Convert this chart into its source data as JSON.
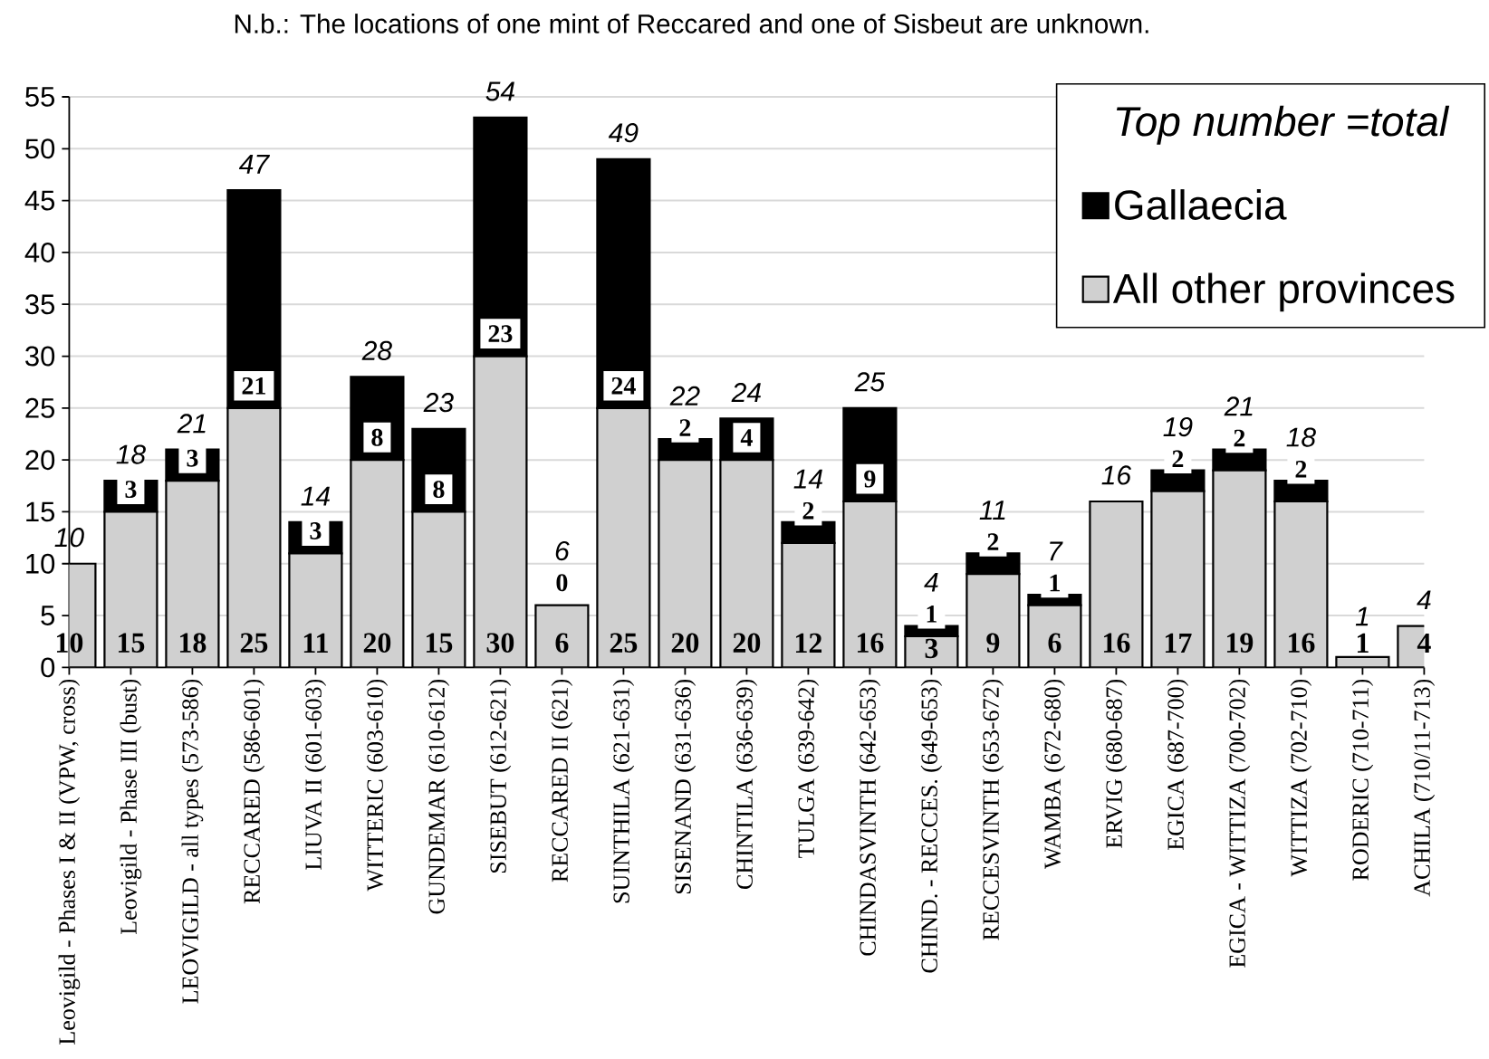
{
  "chart_data": {
    "type": "bar",
    "stacked": true,
    "annotations": [
      "N.b.: The locations of one mint of Reccared and one of Sisbeut are unknown."
    ],
    "categories": [
      "Leovigild - Phases I & II (VPW, cross)",
      "Leovigild - Phase III (bust)",
      "LEOVIGILD - all types (573-586)",
      "RECCARED (586-601)",
      "LIUVA II (601-603)",
      "WITTERIC (603-610)",
      "GUNDEMAR (610-612)",
      "SISEBUT (612-621)",
      "RECCARED II (621)",
      "SUINTHILA (621-631)",
      "SISENAND (631-636)",
      "CHINTILA (636-639)",
      "TULGA (639-642)",
      "CHINDASVINTH (642-653)",
      "CHIND. - RECCES. (649-653)",
      "RECCESVINTH (653-672)",
      "WAMBA (672-680)",
      "ERVIG (680-687)",
      "EGICA (687-700)",
      "EGICA - WITTIZA (700-702)",
      "WITTIZA (702-710)",
      "RODERIC (710-711)",
      "ACHILA (710/11-713)"
    ],
    "series": [
      {
        "name": "All other provinces",
        "color": "#d0d0d0",
        "values": [
          10,
          15,
          18,
          25,
          11,
          20,
          15,
          30,
          6,
          25,
          20,
          20,
          12,
          16,
          3,
          9,
          6,
          16,
          17,
          19,
          16,
          1,
          4
        ],
        "value_labels": [
          "10",
          "15",
          "18",
          "25",
          "11",
          "20",
          "15",
          "30",
          "6",
          "25",
          "20",
          "20",
          "12",
          "16",
          "3",
          "9",
          "6",
          "16",
          "17",
          "19",
          "16",
          "1",
          "4"
        ]
      },
      {
        "name": "Gallaecia",
        "color": "#000000",
        "values": [
          0,
          3,
          3,
          21,
          3,
          8,
          8,
          23,
          0,
          24,
          2,
          4,
          2,
          9,
          1,
          2,
          1,
          0,
          2,
          2,
          2,
          0,
          0
        ],
        "value_labels": [
          null,
          "3",
          "3",
          "21",
          "3",
          "8",
          "8",
          "23",
          "0",
          "24",
          "2",
          "4",
          "2",
          "9",
          "1",
          "2",
          "1",
          null,
          "2",
          "2",
          "2",
          null,
          null
        ]
      }
    ],
    "totals": [
      "10",
      "18",
      "21",
      "47",
      "14",
      "28",
      "23",
      "54",
      "6",
      "49",
      "22",
      "24",
      "14",
      "25",
      "4",
      "11",
      "7",
      "16",
      "19",
      "21",
      "18",
      "1",
      "4"
    ],
    "legend_title": "Top number =total",
    "legend": "top right",
    "ylim": [
      0,
      55
    ],
    "yticks": [
      0,
      5,
      10,
      15,
      20,
      25,
      30,
      35,
      40,
      45,
      50,
      55
    ],
    "grid": "y"
  }
}
